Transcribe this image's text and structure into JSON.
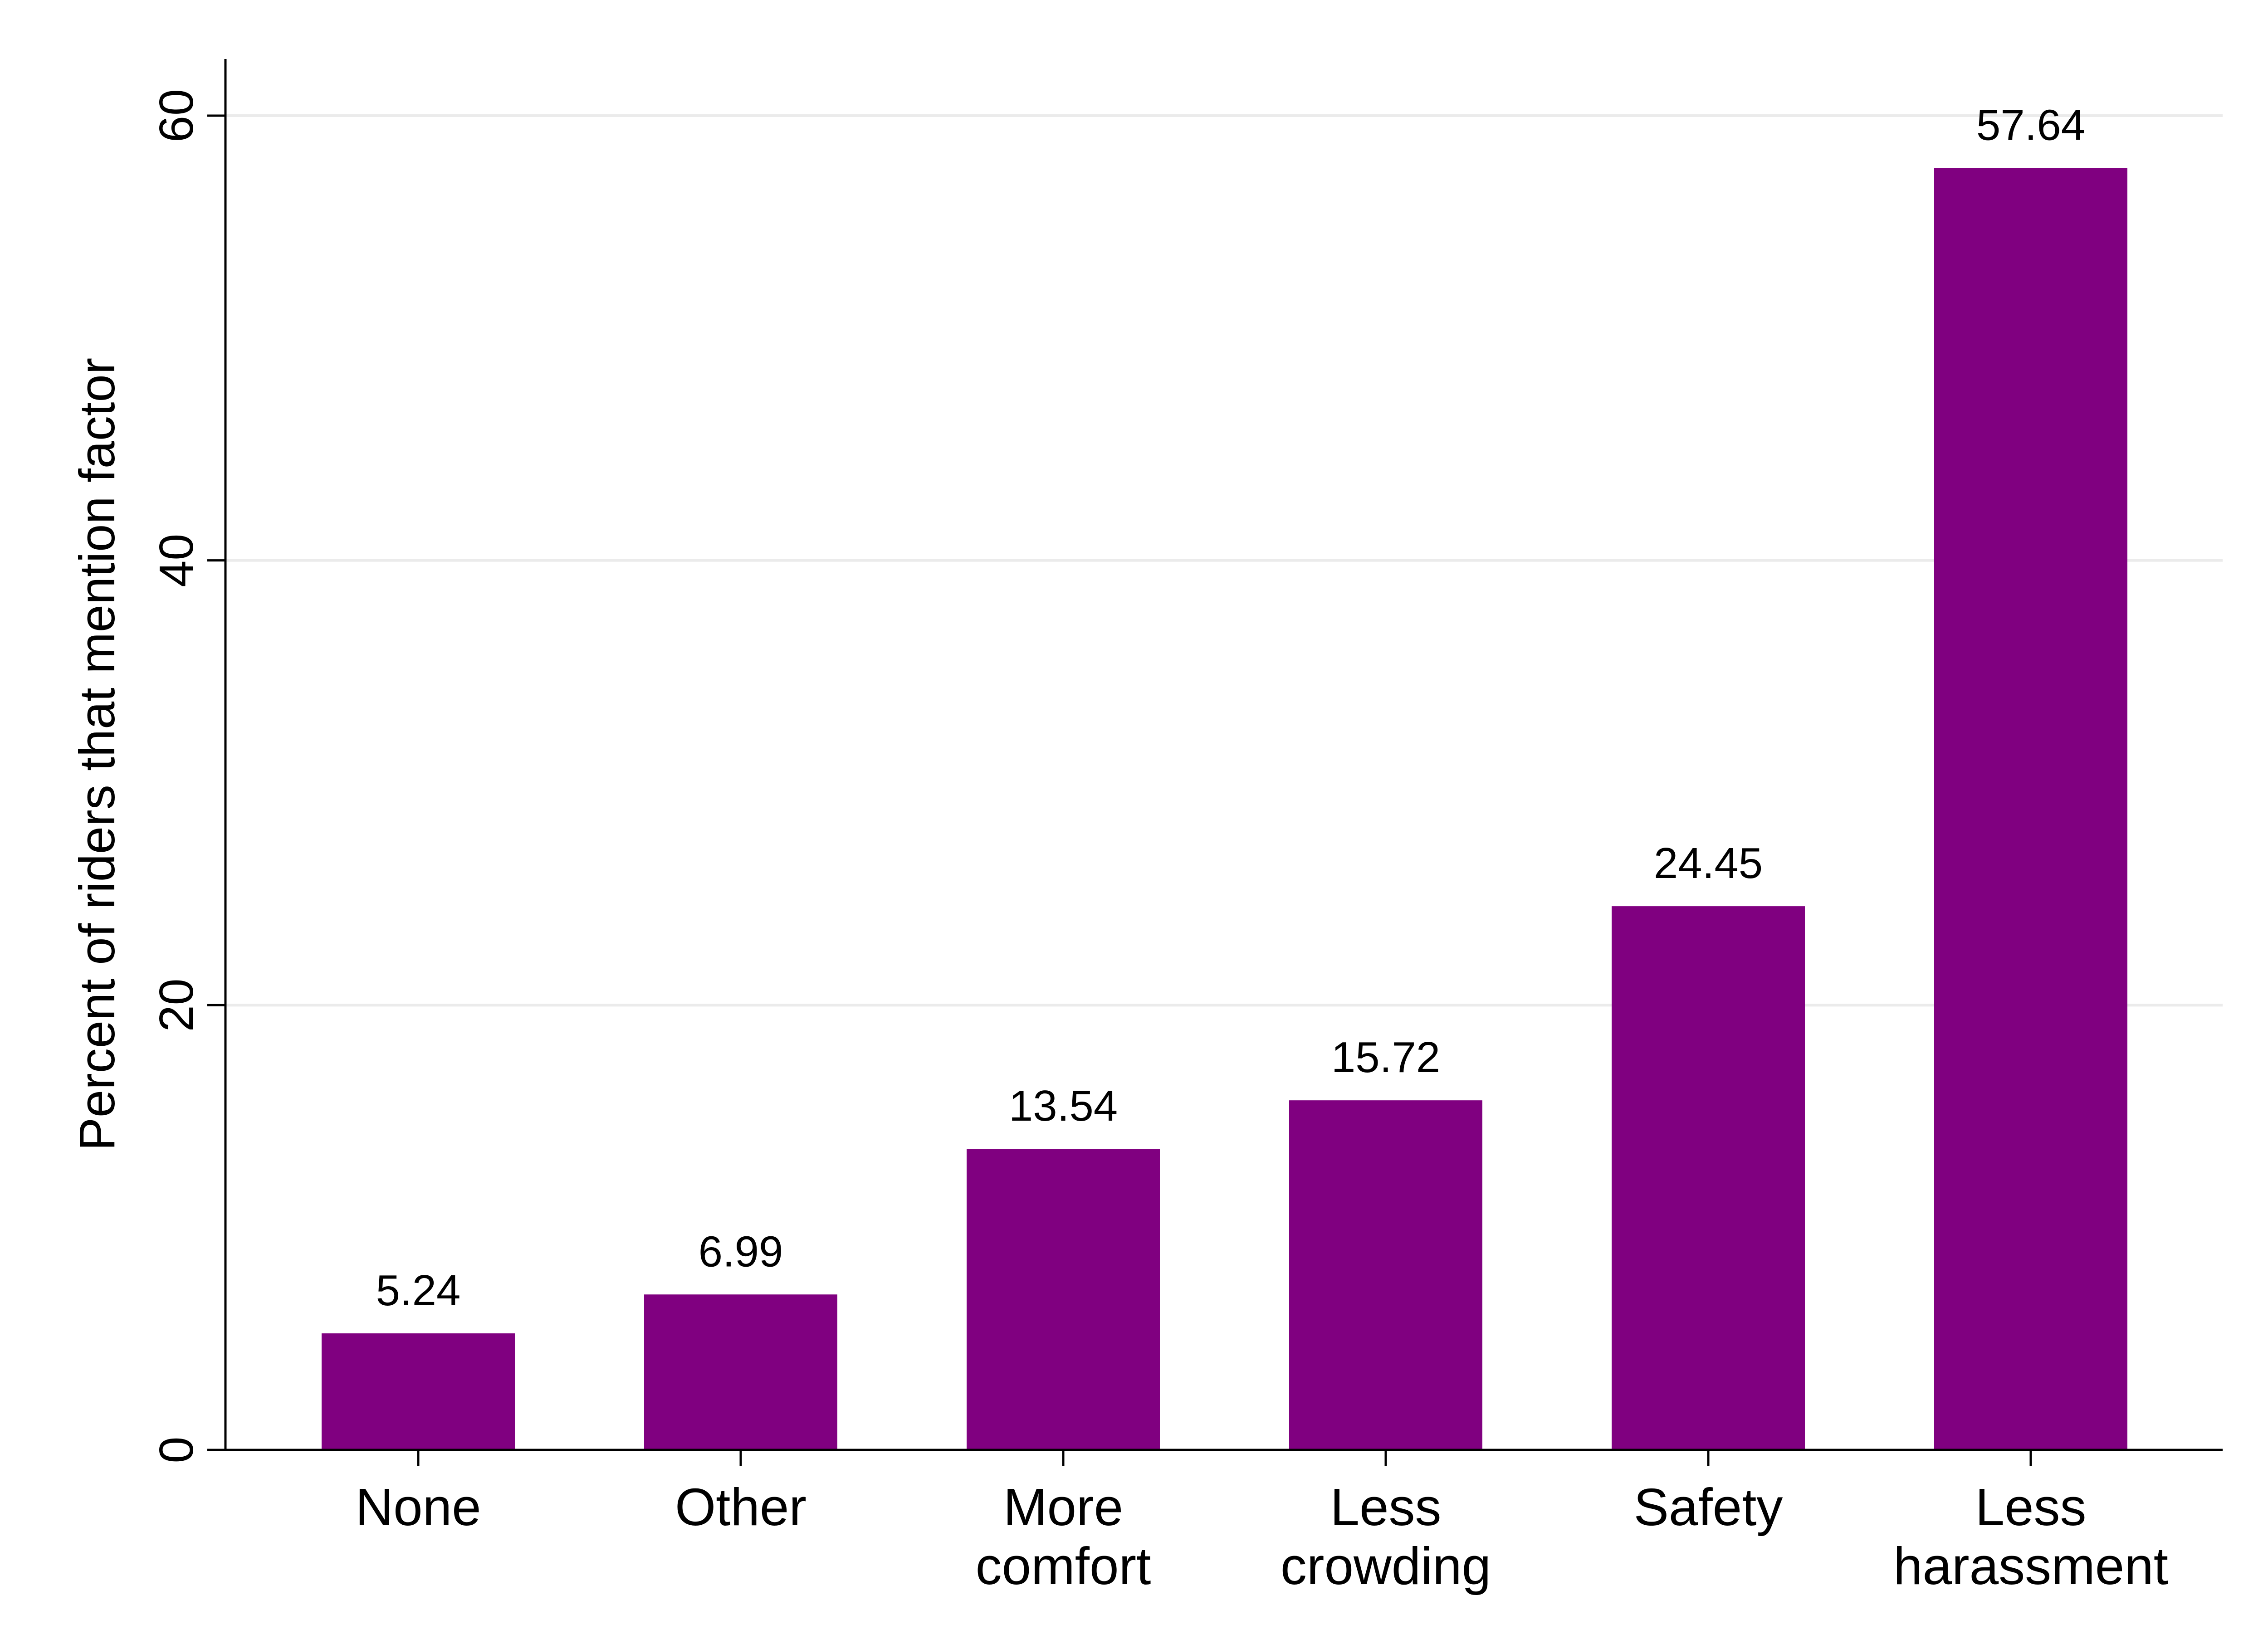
{
  "chart_data": {
    "type": "bar",
    "categories": [
      "None",
      "Other",
      "More\ncomfort",
      "Less\ncrowding",
      "Safety",
      "Less\nharassment"
    ],
    "values": [
      5.24,
      6.99,
      13.54,
      15.72,
      24.45,
      57.64
    ],
    "value_labels": [
      "5.24",
      "6.99",
      "13.54",
      "15.72",
      "24.45",
      "57.64"
    ],
    "title": "",
    "xlabel": "",
    "ylabel": "Percent of riders that mention factor",
    "ylim": [
      0,
      60
    ],
    "yticks": [
      0,
      20,
      40,
      60
    ],
    "grid": true,
    "bar_color": "#800080",
    "legend": "none"
  }
}
